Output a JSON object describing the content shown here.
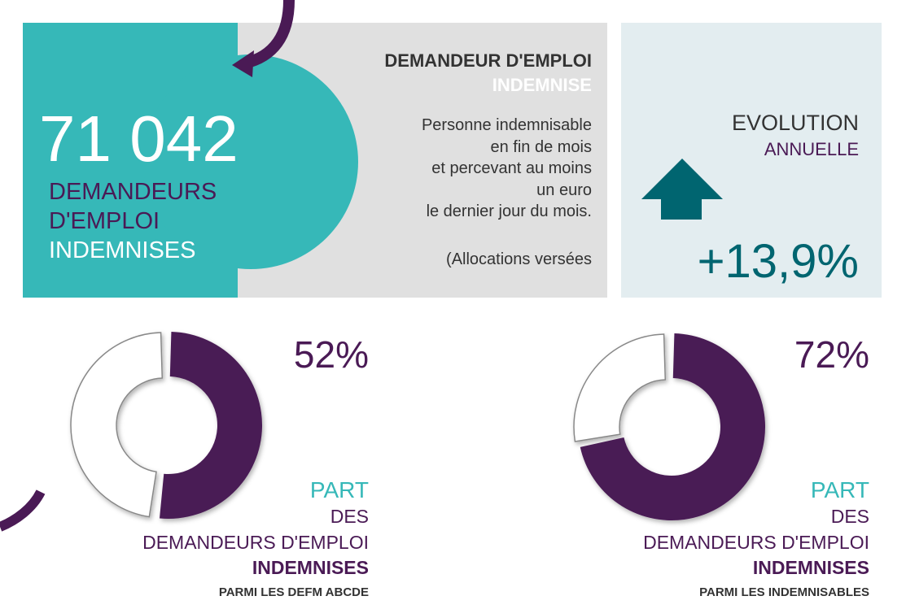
{
  "headline": {
    "number": "71 042",
    "line1": "DEMANDEURS",
    "line2": "D'EMPLOI",
    "line3": "INDEMNISES"
  },
  "definition": {
    "title": "DEMANDEUR D'EMPLOI",
    "subtitle": "INDEMNISE",
    "lines": [
      "Personne indemnisable",
      "en fin de mois",
      "et percevant au moins",
      "un euro",
      "le dernier jour du mois.",
      "(Allocations versées"
    ]
  },
  "evolution": {
    "label1": "EVOLUTION",
    "label2": "ANNUELLE",
    "value": "+13,9%"
  },
  "donuts": [
    {
      "value": 52,
      "value_label": "52%",
      "line1": "PART",
      "line2": "DES",
      "line3": "DEMANDEURS D'EMPLOI",
      "line4": "INDEMNISES",
      "line5": "PARMI LES DEFM ABCDE"
    },
    {
      "value": 72,
      "value_label": "72%",
      "line1": "PART",
      "line2": "DES",
      "line3": "DEMANDEURS D'EMPLOI",
      "line4": "INDEMNISES",
      "line5": "PARMI LES INDEMNISABLES"
    }
  ]
}
